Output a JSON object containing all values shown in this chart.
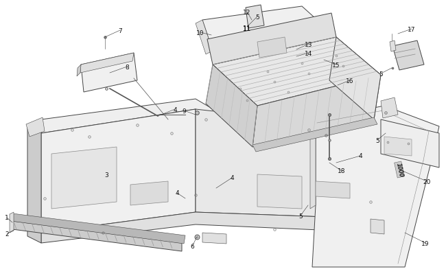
{
  "background_color": "#ffffff",
  "figure_width": 6.5,
  "figure_height": 4.06,
  "dpi": 100,
  "line_color": "#444444",
  "stroke_color": "#444444",
  "fill_light": "#f0f0f0",
  "fill_mid": "#e0e0e0",
  "fill_dark": "#cccccc",
  "fill_white": "#fafafa",
  "lw_main": 0.7,
  "lw_thin": 0.4,
  "lw_label": 0.35
}
